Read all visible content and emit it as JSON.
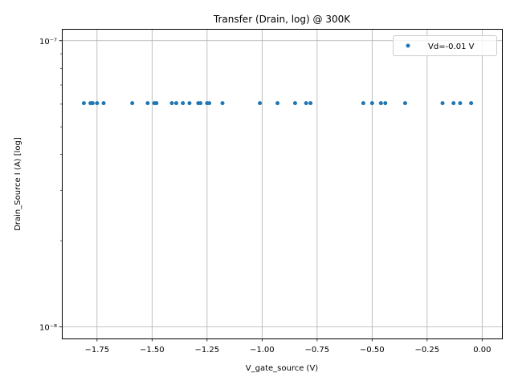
{
  "chart_data": {
    "type": "scatter",
    "title": "Transfer (Drain, log) @ 300K",
    "xlabel": "V_gate_source (V)",
    "ylabel": "Drain_Source I (A) [log]",
    "xlim": [
      -1.91,
      0.09
    ],
    "ylim": [
      9.1e-09,
      1.1e-07
    ],
    "y_scale": "log",
    "grid": true,
    "legend_position": "top-right",
    "x_ticks": [
      {
        "value": -1.75,
        "label": "−1.75"
      },
      {
        "value": -1.5,
        "label": "−1.50"
      },
      {
        "value": -1.25,
        "label": "−1.25"
      },
      {
        "value": -1.0,
        "label": "−1.00"
      },
      {
        "value": -0.75,
        "label": "−0.75"
      },
      {
        "value": -0.5,
        "label": "−0.50"
      },
      {
        "value": -0.25,
        "label": "−0.25"
      },
      {
        "value": 0.0,
        "label": "0.00"
      }
    ],
    "y_ticks": [
      {
        "value": 1e-08,
        "label": "10⁻⁸"
      },
      {
        "value": 1e-07,
        "label": "10⁻⁷"
      }
    ],
    "series": [
      {
        "name": "Vd=-0.01 V",
        "color": "#1f77b4",
        "points": [
          {
            "x": -1.81,
            "y": 6.05e-08
          },
          {
            "x": -1.78,
            "y": 6.05e-08
          },
          {
            "x": -1.77,
            "y": 6.05e-08
          },
          {
            "x": -1.75,
            "y": 6.05e-08
          },
          {
            "x": -1.72,
            "y": 6.05e-08
          },
          {
            "x": -1.59,
            "y": 6.05e-08
          },
          {
            "x": -1.52,
            "y": 6.05e-08
          },
          {
            "x": -1.49,
            "y": 6.05e-08
          },
          {
            "x": -1.48,
            "y": 6.05e-08
          },
          {
            "x": -1.41,
            "y": 6.05e-08
          },
          {
            "x": -1.39,
            "y": 6.05e-08
          },
          {
            "x": -1.36,
            "y": 6.05e-08
          },
          {
            "x": -1.33,
            "y": 6.05e-08
          },
          {
            "x": -1.29,
            "y": 6.05e-08
          },
          {
            "x": -1.28,
            "y": 6.05e-08
          },
          {
            "x": -1.25,
            "y": 6.05e-08
          },
          {
            "x": -1.24,
            "y": 6.05e-08
          },
          {
            "x": -1.18,
            "y": 6.05e-08
          },
          {
            "x": -1.01,
            "y": 6.05e-08
          },
          {
            "x": -0.93,
            "y": 6.05e-08
          },
          {
            "x": -0.85,
            "y": 6.05e-08
          },
          {
            "x": -0.8,
            "y": 6.05e-08
          },
          {
            "x": -0.78,
            "y": 6.05e-08
          },
          {
            "x": -0.54,
            "y": 6.05e-08
          },
          {
            "x": -0.5,
            "y": 6.05e-08
          },
          {
            "x": -0.46,
            "y": 6.05e-08
          },
          {
            "x": -0.44,
            "y": 6.05e-08
          },
          {
            "x": -0.35,
            "y": 6.05e-08
          },
          {
            "x": -0.18,
            "y": 6.05e-08
          },
          {
            "x": -0.13,
            "y": 6.05e-08
          },
          {
            "x": -0.1,
            "y": 6.05e-08
          },
          {
            "x": -0.05,
            "y": 6.05e-08
          }
        ]
      }
    ]
  }
}
